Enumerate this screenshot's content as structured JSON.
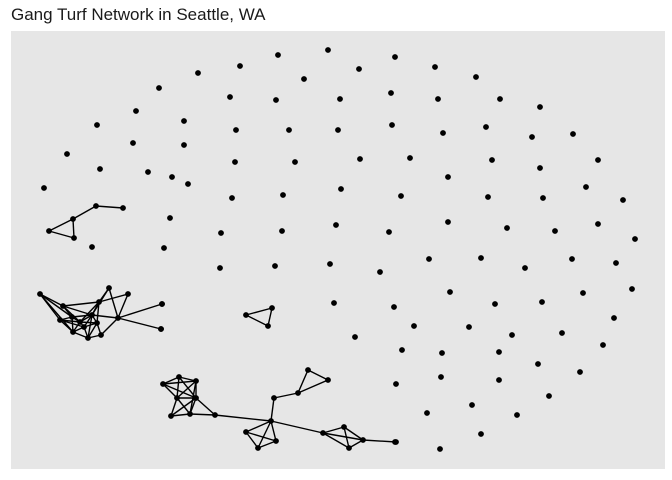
{
  "title": "Gang Turf Network in Seattle, WA",
  "colors": {
    "panel": "#e6e6e6",
    "node": "#000000",
    "edge": "#000000"
  },
  "network": {
    "node_count": 153,
    "components": [
      {
        "description": "isolated nodes",
        "count": 104
      },
      {
        "description": "path/cluster of 5",
        "count": 5
      },
      {
        "description": "triangle of 3",
        "count": 3
      },
      {
        "description": "dense cluster of 17",
        "count": 17
      },
      {
        "description": "dense cluster of 24",
        "count": 24
      }
    ]
  }
}
